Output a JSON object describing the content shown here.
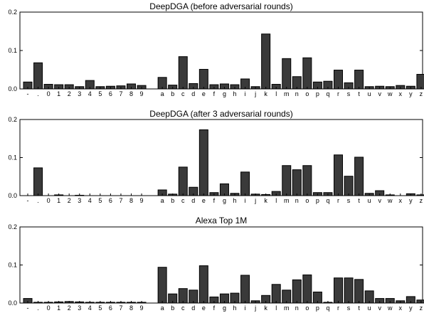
{
  "figure": {
    "categories": [
      "-",
      ".",
      "0",
      "1",
      "2",
      "3",
      "4",
      "5",
      "6",
      "7",
      "8",
      "9",
      "",
      "a",
      "b",
      "c",
      "d",
      "e",
      "f",
      "g",
      "h",
      "i",
      "j",
      "k",
      "l",
      "m",
      "n",
      "o",
      "p",
      "q",
      "r",
      "s",
      "t",
      "u",
      "v",
      "w",
      "x",
      "y",
      "z"
    ],
    "bar_color": "#3a3a3a"
  },
  "chart_data": [
    {
      "type": "bar",
      "title": "DeepDGA (before adversarial rounds)",
      "xlabel": "",
      "ylabel": "",
      "ylim": [
        0,
        0.2
      ],
      "yticks": [
        0.0,
        0.1,
        0.2
      ],
      "ytick_labels": [
        "0.0",
        "0.1",
        "0.2"
      ],
      "grid": false,
      "categories": [
        "-",
        ".",
        "0",
        "1",
        "2",
        "3",
        "4",
        "5",
        "6",
        "7",
        "8",
        "9",
        "",
        "a",
        "b",
        "c",
        "d",
        "e",
        "f",
        "g",
        "h",
        "i",
        "j",
        "k",
        "l",
        "m",
        "n",
        "o",
        "p",
        "q",
        "r",
        "s",
        "t",
        "u",
        "v",
        "w",
        "x",
        "y",
        "z"
      ],
      "values": [
        0.018,
        0.068,
        0.012,
        0.011,
        0.011,
        0.006,
        0.022,
        0.006,
        0.007,
        0.008,
        0.013,
        0.009,
        0.0,
        0.03,
        0.01,
        0.084,
        0.014,
        0.051,
        0.011,
        0.013,
        0.011,
        0.026,
        0.006,
        0.143,
        0.012,
        0.079,
        0.032,
        0.081,
        0.018,
        0.02,
        0.049,
        0.016,
        0.049,
        0.006,
        0.007,
        0.006,
        0.009,
        0.007,
        0.038
      ]
    },
    {
      "type": "bar",
      "title": "DeepDGA (after 3 adversarial rounds)",
      "xlabel": "",
      "ylabel": "",
      "ylim": [
        0,
        0.2
      ],
      "yticks": [
        0.0,
        0.1,
        0.2
      ],
      "ytick_labels": [
        "0.0",
        "0.1",
        "0.2"
      ],
      "grid": false,
      "categories": [
        "-",
        ".",
        "0",
        "1",
        "2",
        "3",
        "4",
        "5",
        "6",
        "7",
        "8",
        "9",
        "",
        "a",
        "b",
        "c",
        "d",
        "e",
        "f",
        "g",
        "h",
        "i",
        "j",
        "k",
        "l",
        "m",
        "n",
        "o",
        "p",
        "q",
        "r",
        "s",
        "t",
        "u",
        "v",
        "w",
        "x",
        "y",
        "z"
      ],
      "values": [
        0.0,
        0.073,
        0.0,
        0.002,
        0.0,
        0.001,
        0.0,
        0.0,
        0.0,
        0.0,
        0.0,
        0.0,
        0.0,
        0.015,
        0.004,
        0.075,
        0.022,
        0.173,
        0.008,
        0.031,
        0.006,
        0.062,
        0.004,
        0.003,
        0.011,
        0.079,
        0.068,
        0.079,
        0.008,
        0.008,
        0.107,
        0.051,
        0.101,
        0.006,
        0.013,
        0.002,
        0.0,
        0.005,
        0.002
      ]
    },
    {
      "type": "bar",
      "title": "Alexa Top 1M",
      "xlabel": "",
      "ylabel": "",
      "ylim": [
        0,
        0.2
      ],
      "yticks": [
        0.0,
        0.1,
        0.2
      ],
      "ytick_labels": [
        "0.0",
        "0.1",
        "0.2"
      ],
      "grid": false,
      "categories": [
        "-",
        ".",
        "0",
        "1",
        "2",
        "3",
        "4",
        "5",
        "6",
        "7",
        "8",
        "9",
        "",
        "a",
        "b",
        "c",
        "d",
        "e",
        "f",
        "g",
        "h",
        "i",
        "j",
        "k",
        "l",
        "m",
        "n",
        "o",
        "p",
        "q",
        "r",
        "s",
        "t",
        "u",
        "v",
        "w",
        "x",
        "y",
        "z"
      ],
      "values": [
        0.012,
        0.002,
        0.002,
        0.003,
        0.004,
        0.003,
        0.002,
        0.002,
        0.002,
        0.002,
        0.002,
        0.002,
        0.0,
        0.094,
        0.024,
        0.038,
        0.034,
        0.098,
        0.016,
        0.024,
        0.026,
        0.073,
        0.006,
        0.02,
        0.049,
        0.034,
        0.061,
        0.074,
        0.029,
        0.002,
        0.066,
        0.066,
        0.062,
        0.032,
        0.012,
        0.012,
        0.006,
        0.017,
        0.008
      ]
    }
  ]
}
